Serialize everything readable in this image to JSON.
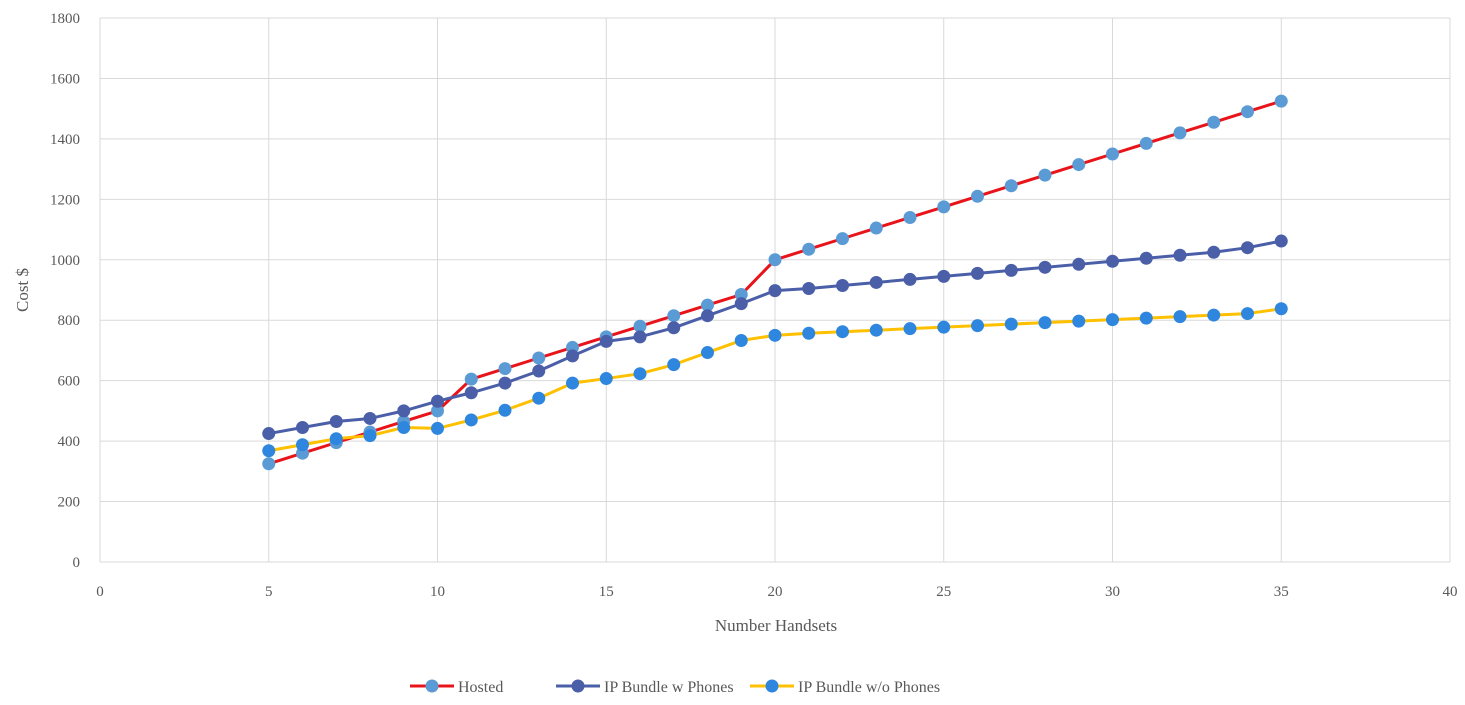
{
  "chart_data": {
    "type": "line",
    "title": "",
    "xlabel": "Number Handsets",
    "ylabel": "Cost $",
    "xlim": [
      0,
      40
    ],
    "ylim": [
      0,
      1800
    ],
    "x_ticks": [
      "0",
      "5",
      "10",
      "15",
      "20",
      "25",
      "30",
      "35",
      "40"
    ],
    "y_ticks": [
      "0",
      "200",
      "400",
      "600",
      "800",
      "1000",
      "1200",
      "1400",
      "1600",
      "1800"
    ],
    "grid": true,
    "legend_position": "bottom",
    "x": [
      5,
      6,
      7,
      8,
      9,
      10,
      11,
      12,
      13,
      14,
      15,
      16,
      17,
      18,
      19,
      20,
      21,
      22,
      23,
      24,
      25,
      26,
      27,
      28,
      29,
      30,
      31,
      32,
      33,
      34,
      35
    ],
    "series": [
      {
        "name": "Hosted",
        "line_color": "#e8141a",
        "marker_color": "#5b9bd5",
        "values": [
          325,
          360,
          395,
          430,
          465,
          500,
          605,
          640,
          675,
          710,
          745,
          780,
          815,
          850,
          885,
          1000,
          1035,
          1070,
          1105,
          1140,
          1175,
          1210,
          1245,
          1280,
          1315,
          1350,
          1385,
          1420,
          1455,
          1490,
          1525
        ]
      },
      {
        "name": "IP Bundle w Phones",
        "line_color": "#4a5fa8",
        "marker_color": "#4a5fa8",
        "values": [
          425,
          445,
          465,
          475,
          500,
          532,
          560,
          592,
          632,
          682,
          730,
          745,
          775,
          815,
          855,
          898,
          905,
          915,
          925,
          935,
          945,
          955,
          965,
          975,
          985,
          995,
          1005,
          1015,
          1025,
          1040,
          1062
        ]
      },
      {
        "name": "IP Bundle w/o Phones",
        "line_color": "#ffc000",
        "marker_color": "#2e86de",
        "values": [
          368,
          388,
          408,
          418,
          445,
          442,
          470,
          502,
          542,
          592,
          607,
          623,
          653,
          693,
          733,
          750,
          757,
          762,
          767,
          772,
          777,
          782,
          787,
          792,
          797,
          802,
          807,
          812,
          817,
          822,
          838
        ]
      }
    ]
  }
}
